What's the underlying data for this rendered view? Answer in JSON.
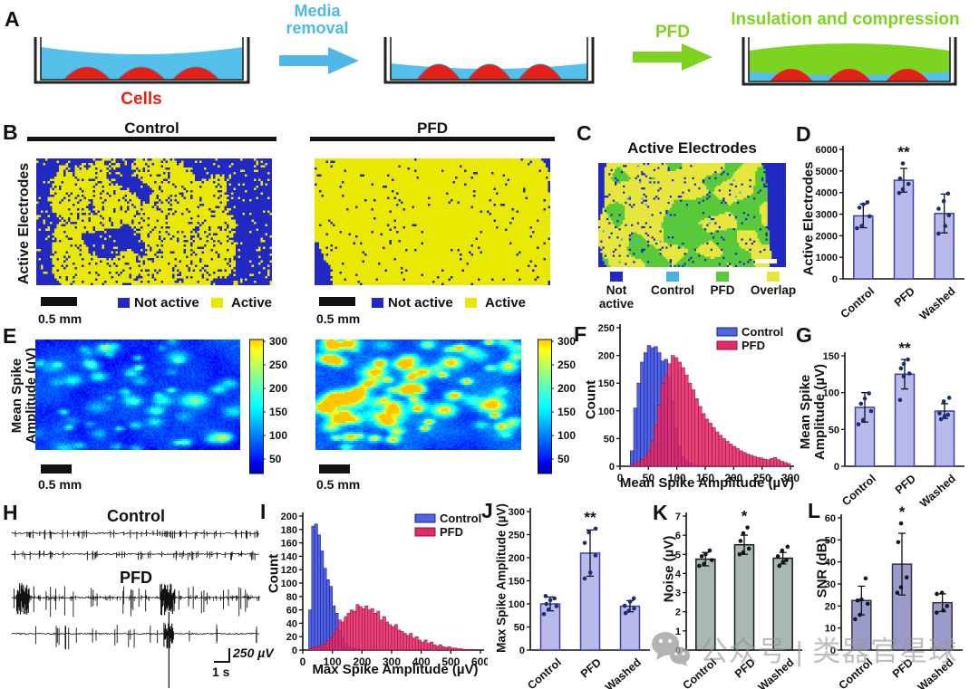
{
  "colors": {
    "media_blue": "#55c0ea",
    "cell_red": "#e32119",
    "pfd_green": "#7ed321",
    "arrow_blue": "#4fb8e8",
    "not_active_blue": "#2228c4",
    "active_yellow": "#e8e800",
    "overlay_control_cyan": "#45b2e0",
    "overlay_pfd_green": "#58ca3a",
    "overlay_overlap_yellow": "#e6e63e",
    "bar_lavender": "#b9b9ec",
    "bar_lavender_border": "#4040a0",
    "bar_gray": "#a9b8b1",
    "bar_slate": "#9b9bcb",
    "dot_navy": "#1a2b7a",
    "hist_blue": "#4f63e3",
    "hist_red": "#e62a68",
    "watermark_gray": "#999999"
  },
  "panelA": {
    "label": "A",
    "cells_label": "Cells",
    "arrow1_label_line1": "Media",
    "arrow1_label_line2": "removal",
    "arrow2_label": "PFD",
    "step3_label": "Insulation and compression"
  },
  "panelB": {
    "label": "B",
    "title_left": "Control",
    "title_right": "PFD",
    "ylabel": "Active Electrodes",
    "scalebar": "0.5 mm",
    "legend_not_active": "Not active",
    "legend_active": "Active"
  },
  "panelC": {
    "label": "C",
    "title": "Active Electrodes",
    "legend": [
      "Not active",
      "Control",
      "PFD",
      "Overlap"
    ]
  },
  "panelD": {
    "label": "D",
    "ylabel": "Active Electrodes"
  },
  "panelE": {
    "label": "E",
    "ylabel_line1": "Mean Spike",
    "ylabel_line2": "Amplitude (µV)",
    "scalebar": "0.5 mm"
  },
  "panelF": {
    "label": "F",
    "ylabel": "Count",
    "xlabel": "Mean Spike Amplitude (µV)"
  },
  "panelG": {
    "label": "G",
    "ylabel_line1": "Mean Spike",
    "ylabel_line2": "Amplitude (µV)"
  },
  "panelH": {
    "label": "H",
    "title_top": "Control",
    "title_bottom": "PFD",
    "scale_v": "250 µV",
    "scale_t": "1 s"
  },
  "panelI": {
    "label": "I",
    "ylabel": "Count",
    "xlabel": "Max Spike Amplitude (µV)"
  },
  "panelJ": {
    "label": "J",
    "ylabel": "Max Spike Amplitude (µV)"
  },
  "panelK": {
    "label": "K",
    "ylabel": "Noise (µV)"
  },
  "panelL": {
    "label": "L",
    "ylabel": "SNR (dB)"
  },
  "watermark": {
    "text": "公众号 | 类器官星球"
  },
  "chart_data": [
    {
      "id": "b_control",
      "type": "binary_map",
      "title": "Control",
      "legend": [
        "Not active",
        "Active"
      ],
      "c0": "#2228c4",
      "c1": "#e8e800",
      "cols": 104,
      "rows": 56,
      "seed": 11,
      "left": 0.1,
      "right": 0.8,
      "edge": 1.2,
      "bias": 0.18,
      "scatter": 0.15,
      "holes": 0.1,
      "cbl": 0,
      "ctr": 0
    },
    {
      "id": "b_pfd",
      "type": "binary_map",
      "title": "PFD",
      "legend": [
        "Not active",
        "Active"
      ],
      "c0": "#2228c4",
      "c1": "#e8e800",
      "cols": 104,
      "rows": 56,
      "seed": 29,
      "left": 0.04,
      "right": 0.93,
      "edge": 1.3,
      "bias": 0.5,
      "scatter": 0.035,
      "holes": 0.02,
      "cbl": 9,
      "ctr": 7
    },
    {
      "id": "c_overlay",
      "type": "overlay_map",
      "title": "Active Electrodes",
      "legend": [
        "Not active",
        "Control",
        "PFD",
        "Overlap"
      ],
      "dark": "#2228c4",
      "control": "#45b2e0",
      "pfd": "#58ca3a",
      "overlap": "#e6e63e",
      "cols": 92,
      "rows": 51,
      "seed": 41,
      "left": 0.05,
      "right": 0.86,
      "edge": 1.1,
      "bias": 0.22,
      "dark_scatter": 0.05,
      "cyan_scatter": 0.012
    },
    {
      "id": "d_bars",
      "type": "bar",
      "title": "Active Electrodes",
      "ylabel": "Active Electrodes",
      "categories": [
        "Control",
        "PFD",
        "Washed"
      ],
      "values": [
        2920,
        4570,
        3030
      ],
      "errors": [
        550,
        550,
        900
      ],
      "points": [
        [
          2350,
          2450,
          2900,
          3300,
          3450,
          3550
        ],
        [
          3980,
          4150,
          4400,
          4650,
          5350
        ],
        [
          2100,
          2450,
          2950,
          3250,
          3600,
          3950
        ]
      ],
      "sig": "**",
      "sig_index": 1,
      "ylim": [
        0,
        6000
      ],
      "yticks": [
        0,
        1000,
        2000,
        3000,
        4000,
        5000,
        6000
      ],
      "bar_color": "#b9b9ec",
      "bar_border": "#4040a0",
      "dot_color": "#1a2b7a"
    },
    {
      "id": "e_control",
      "type": "jet_map",
      "title": "Control",
      "ylabel": "Mean Spike Amplitude (µV)",
      "range": [
        19,
        308
      ],
      "cols": 113,
      "rows": 61,
      "seed": 51,
      "base": 45,
      "noise_amp": 42,
      "blobs": 55,
      "amp": 130,
      "hotspots": [
        {
          "x": 0.78,
          "y": 0.55,
          "a": 170,
          "s": 0.004
        },
        {
          "x": 0.35,
          "y": 0.08,
          "a": 120,
          "s": 0.003
        }
      ]
    },
    {
      "id": "e_pfd",
      "type": "jet_map",
      "title": "PFD",
      "ylabel": "Mean Spike Amplitude (µV)",
      "range": [
        19,
        308
      ],
      "cols": 113,
      "rows": 61,
      "seed": 67,
      "base": 58,
      "noise_amp": 48,
      "blobs": 90,
      "amp": 210,
      "hotspots": [
        {
          "x": 0.15,
          "y": 0.55,
          "a": 240,
          "s": 0.006
        },
        {
          "x": 0.35,
          "y": 0.75,
          "a": 250,
          "s": 0.003
        },
        {
          "x": 0.85,
          "y": 0.6,
          "a": 240,
          "s": 0.004
        },
        {
          "x": 0.5,
          "y": 0.3,
          "a": 180,
          "s": 0.005
        },
        {
          "x": 0.28,
          "y": 0.3,
          "a": 220,
          "s": 0.004
        }
      ]
    },
    {
      "id": "e_colorbar",
      "type": "colorbar",
      "ticks": [
        300,
        250,
        200,
        150,
        100,
        50
      ],
      "vmin": 19,
      "vmax": 308
    },
    {
      "id": "f_hist",
      "type": "histogram",
      "xlabel": "Mean Spike Amplitude (µV)",
      "ylabel": "Count",
      "bin_start": 0,
      "bin_width": 6,
      "xlim": [
        0,
        300
      ],
      "xticks": [
        0,
        50,
        100,
        150,
        200,
        250,
        300
      ],
      "ylim": [
        0,
        250
      ],
      "yticks": [
        0,
        50,
        100,
        150,
        200,
        250
      ],
      "series": [
        {
          "name": "Control",
          "color": "#4f63e3",
          "edge": "#1b1f8e",
          "values": [
            0,
            0,
            0,
            28,
            105,
            150,
            188,
            205,
            218,
            214,
            216,
            205,
            190,
            193,
            162,
            118,
            70,
            38,
            18,
            10,
            6,
            3,
            2,
            1,
            1,
            1,
            0,
            0,
            0,
            0,
            0,
            0,
            0,
            0,
            0,
            0,
            0,
            0,
            0,
            0,
            0,
            0,
            0,
            0,
            0,
            0,
            0,
            0,
            0,
            0
          ]
        },
        {
          "name": "PFD",
          "color": "#e62a68",
          "edge": "#8f0f3f",
          "values": [
            0,
            0,
            0,
            2,
            5,
            8,
            12,
            18,
            28,
            45,
            75,
            110,
            150,
            165,
            185,
            200,
            196,
            188,
            178,
            165,
            150,
            138,
            122,
            108,
            95,
            85,
            78,
            70,
            62,
            56,
            50,
            45,
            40,
            36,
            32,
            28,
            25,
            22,
            20,
            18,
            16,
            15,
            13,
            12,
            14,
            16,
            12,
            9,
            7,
            5
          ]
        }
      ]
    },
    {
      "id": "g_bars",
      "type": "bar",
      "ylabel": "Mean Spike Amplitude (µV)",
      "categories": [
        "Control",
        "PFD",
        "Washed"
      ],
      "values": [
        80,
        125,
        75
      ],
      "errors": [
        20,
        20,
        10
      ],
      "points": [
        [
          57,
          63,
          75,
          85,
          92,
          99
        ],
        [
          90,
          122,
          126,
          133,
          139,
          145
        ],
        [
          64,
          68,
          70,
          72,
          88,
          93
        ]
      ],
      "sig": "**",
      "sig_index": 1,
      "ylim": [
        0,
        150
      ],
      "yticks": [
        0,
        50,
        100,
        150
      ],
      "bar_color": "#b9b9ec",
      "bar_border": "#4040a0",
      "dot_color": "#1a2b7a"
    },
    {
      "id": "h_traces",
      "type": "traces",
      "seed": 77,
      "scale_v": "250 µV",
      "scale_t": "1 s",
      "groups": [
        {
          "name": "Control",
          "amp": 5,
          "spikes": 60
        },
        {
          "name": "Control",
          "amp": 5,
          "spikes": 55
        },
        {
          "name": "PFD",
          "amp": 16,
          "spikes": 30,
          "micro": true,
          "bursts": [
            [
              0.02,
              0.07
            ],
            [
              0.6,
              0.66
            ]
          ]
        },
        {
          "name": "PFD",
          "amp": 13,
          "spikes": 24,
          "bursts": [
            [
              0.615,
              0.655
            ]
          ],
          "big": [
            0.635
          ]
        }
      ]
    },
    {
      "id": "i_hist",
      "type": "histogram",
      "xlabel": "Max Spike Amplitude (µV)",
      "ylabel": "Count",
      "bin_start": 0,
      "bin_width": 10,
      "xlim": [
        0,
        600
      ],
      "xticks": [
        0,
        100,
        200,
        300,
        400,
        500,
        600
      ],
      "ylim": [
        0,
        200
      ],
      "yticks": [
        0,
        20,
        40,
        60,
        80,
        100,
        120,
        140,
        160,
        180,
        200
      ],
      "series": [
        {
          "name": "Control",
          "color": "#4f63e3",
          "edge": "#1b1f8e",
          "values": [
            0,
            0,
            60,
            185,
            188,
            172,
            148,
            122,
            105,
            95,
            66,
            55,
            30,
            18,
            10,
            6,
            4,
            3,
            2,
            1,
            1,
            1,
            0,
            0,
            0,
            0,
            0,
            0,
            0,
            0,
            0,
            0,
            0,
            0,
            0,
            0,
            0,
            0,
            0,
            0,
            0,
            0,
            0,
            0,
            0,
            0,
            0,
            0,
            0,
            0,
            0,
            0,
            0,
            0,
            0,
            0,
            0,
            0,
            0,
            0
          ]
        },
        {
          "name": "PFD",
          "color": "#e62a68",
          "edge": "#8f0f3f",
          "values": [
            0,
            0,
            2,
            4,
            5,
            6,
            8,
            10,
            14,
            18,
            25,
            32,
            45,
            42,
            50,
            55,
            60,
            58,
            68,
            65,
            62,
            66,
            60,
            62,
            55,
            58,
            45,
            50,
            42,
            38,
            35,
            38,
            30,
            28,
            25,
            22,
            25,
            18,
            20,
            15,
            12,
            15,
            10,
            12,
            8,
            6,
            8,
            5,
            4,
            5,
            3,
            3,
            2,
            2,
            1,
            1,
            1,
            1,
            0,
            0
          ]
        }
      ]
    },
    {
      "id": "j_bars",
      "type": "bar",
      "ylabel": "Max Spike Amplitude (µV)",
      "categories": [
        "Control",
        "PFD",
        "Washed"
      ],
      "values": [
        100,
        210,
        95
      ],
      "errors": [
        15,
        50,
        12
      ],
      "points": [
        [
          78,
          88,
          95,
          100,
          108,
          112,
          117
        ],
        [
          155,
          168,
          205,
          232,
          255,
          263
        ],
        [
          80,
          85,
          90,
          96,
          105,
          112
        ]
      ],
      "sig": "**",
      "sig_index": 1,
      "ylim": [
        0,
        300
      ],
      "yticks": [
        0,
        50,
        100,
        150,
        200,
        250,
        300
      ],
      "bar_color": "#b9b9ec",
      "bar_border": "#4040a0",
      "dot_color": "#1a2b7a"
    },
    {
      "id": "k_bars",
      "type": "bar",
      "ylabel": "Noise (µV)",
      "categories": [
        "Control",
        "PFD",
        "Washed"
      ],
      "values": [
        4.75,
        5.5,
        4.8
      ],
      "errors": [
        0.35,
        0.5,
        0.3
      ],
      "points": [
        [
          4.4,
          4.5,
          4.7,
          4.9,
          5.0,
          5.2
        ],
        [
          5.0,
          5.1,
          5.3,
          5.7,
          6.1,
          6.4
        ],
        [
          4.4,
          4.6,
          4.7,
          4.9,
          5.2,
          5.4
        ]
      ],
      "sig": "*",
      "sig_index": 1,
      "ylim": [
        0,
        7
      ],
      "yticks": [
        0,
        1,
        2,
        3,
        4,
        5,
        6,
        7
      ],
      "bar_color": "#a9b8b1",
      "bar_border": "#1a1a1a",
      "dot_color": "#111722"
    },
    {
      "id": "l_bars",
      "type": "bar",
      "ylabel": "SNR (dB)",
      "categories": [
        "Control",
        "PFD",
        "Washed"
      ],
      "values": [
        22.5,
        39,
        21.5
      ],
      "errors": [
        6.5,
        14,
        4
      ],
      "points": [
        [
          14,
          16,
          21,
          22.5,
          23,
          32.5
        ],
        [
          26,
          28.5,
          33,
          49,
          57.5
        ],
        [
          17,
          18,
          20,
          25.5,
          26
        ]
      ],
      "sig": "*",
      "sig_index": 1,
      "ylim": [
        0,
        60
      ],
      "yticks": [
        0,
        10,
        20,
        30,
        40,
        50,
        60
      ],
      "bar_color": "#9b9bcb",
      "bar_border": "#333344",
      "dot_color": "#111722"
    }
  ]
}
